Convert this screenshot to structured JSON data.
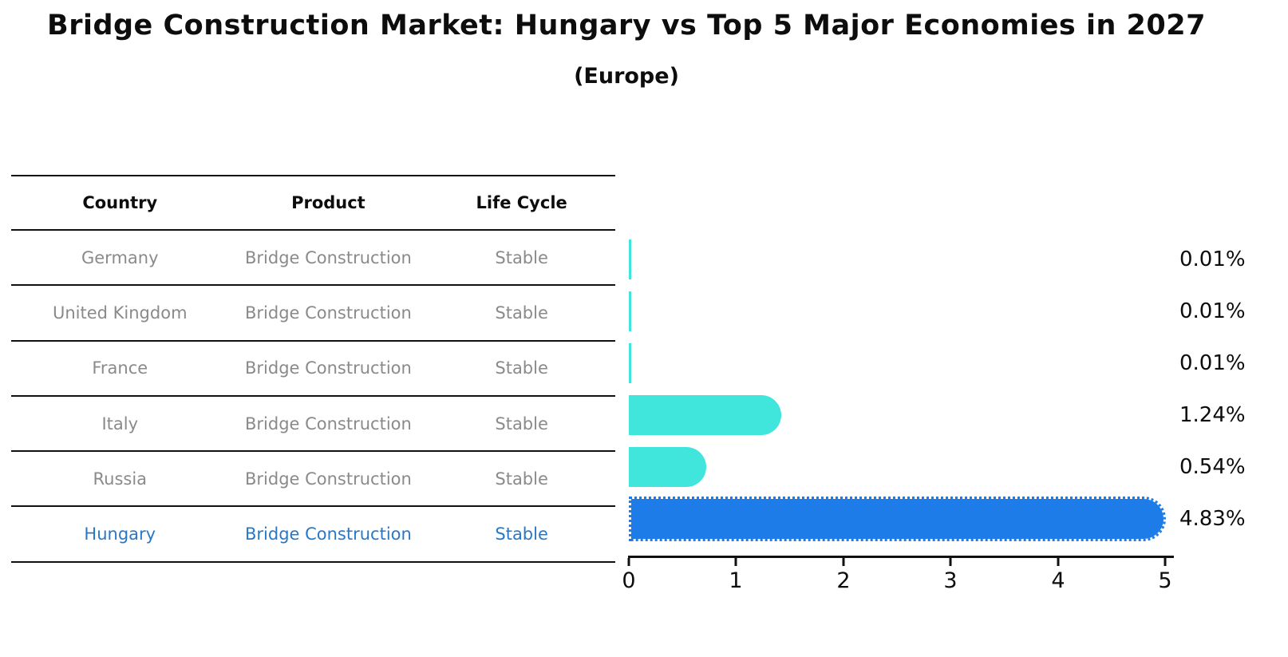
{
  "title": "Bridge Construction Market: Hungary vs Top 5 Major Economies in 2027",
  "subtitle": "(Europe)",
  "table": {
    "headers": [
      "Country",
      "Product",
      "Life Cycle"
    ],
    "rows": [
      {
        "country": "Germany",
        "product": "Bridge Construction",
        "life_cycle": "Stable",
        "highlight": false
      },
      {
        "country": "United Kingdom",
        "product": "Bridge Construction",
        "life_cycle": "Stable",
        "highlight": false
      },
      {
        "country": "France",
        "product": "Bridge Construction",
        "life_cycle": "Stable",
        "highlight": false
      },
      {
        "country": "Italy",
        "product": "Bridge Construction",
        "life_cycle": "Stable",
        "highlight": false
      },
      {
        "country": "Russia",
        "product": "Bridge Construction",
        "life_cycle": "Stable",
        "highlight": false
      },
      {
        "country": "Hungary",
        "product": "Bridge Construction",
        "life_cycle": "Stable",
        "highlight": true
      }
    ]
  },
  "chart_data": {
    "type": "bar",
    "orientation": "horizontal",
    "title": "Bridge Construction Market: Hungary vs Top 5 Major Economies in 2027 (Europe)",
    "categories": [
      "Germany",
      "United Kingdom",
      "France",
      "Italy",
      "Russia",
      "Hungary"
    ],
    "values": [
      0.01,
      0.01,
      0.01,
      1.24,
      0.54,
      4.83
    ],
    "value_labels": [
      "0.01%",
      "0.01%",
      "0.01%",
      "1.24%",
      "0.54%",
      "4.83%"
    ],
    "xlim": [
      0,
      5
    ],
    "x_ticks": [
      "0",
      "1",
      "2",
      "3",
      "4",
      "5"
    ],
    "grid": false,
    "legend": false,
    "highlight_index": 5,
    "bar_colors": [
      "#40e5dc",
      "#40e5dc",
      "#40e5dc",
      "#40e5dc",
      "#40e5dc",
      "#1e7ce8"
    ]
  },
  "colors": {
    "bar_cyan": "#40e5dc",
    "bar_blue": "#1e7ce8",
    "highlight_text": "#2878c8",
    "muted_text": "#8a8a8a",
    "text": "#0d0d0d"
  }
}
